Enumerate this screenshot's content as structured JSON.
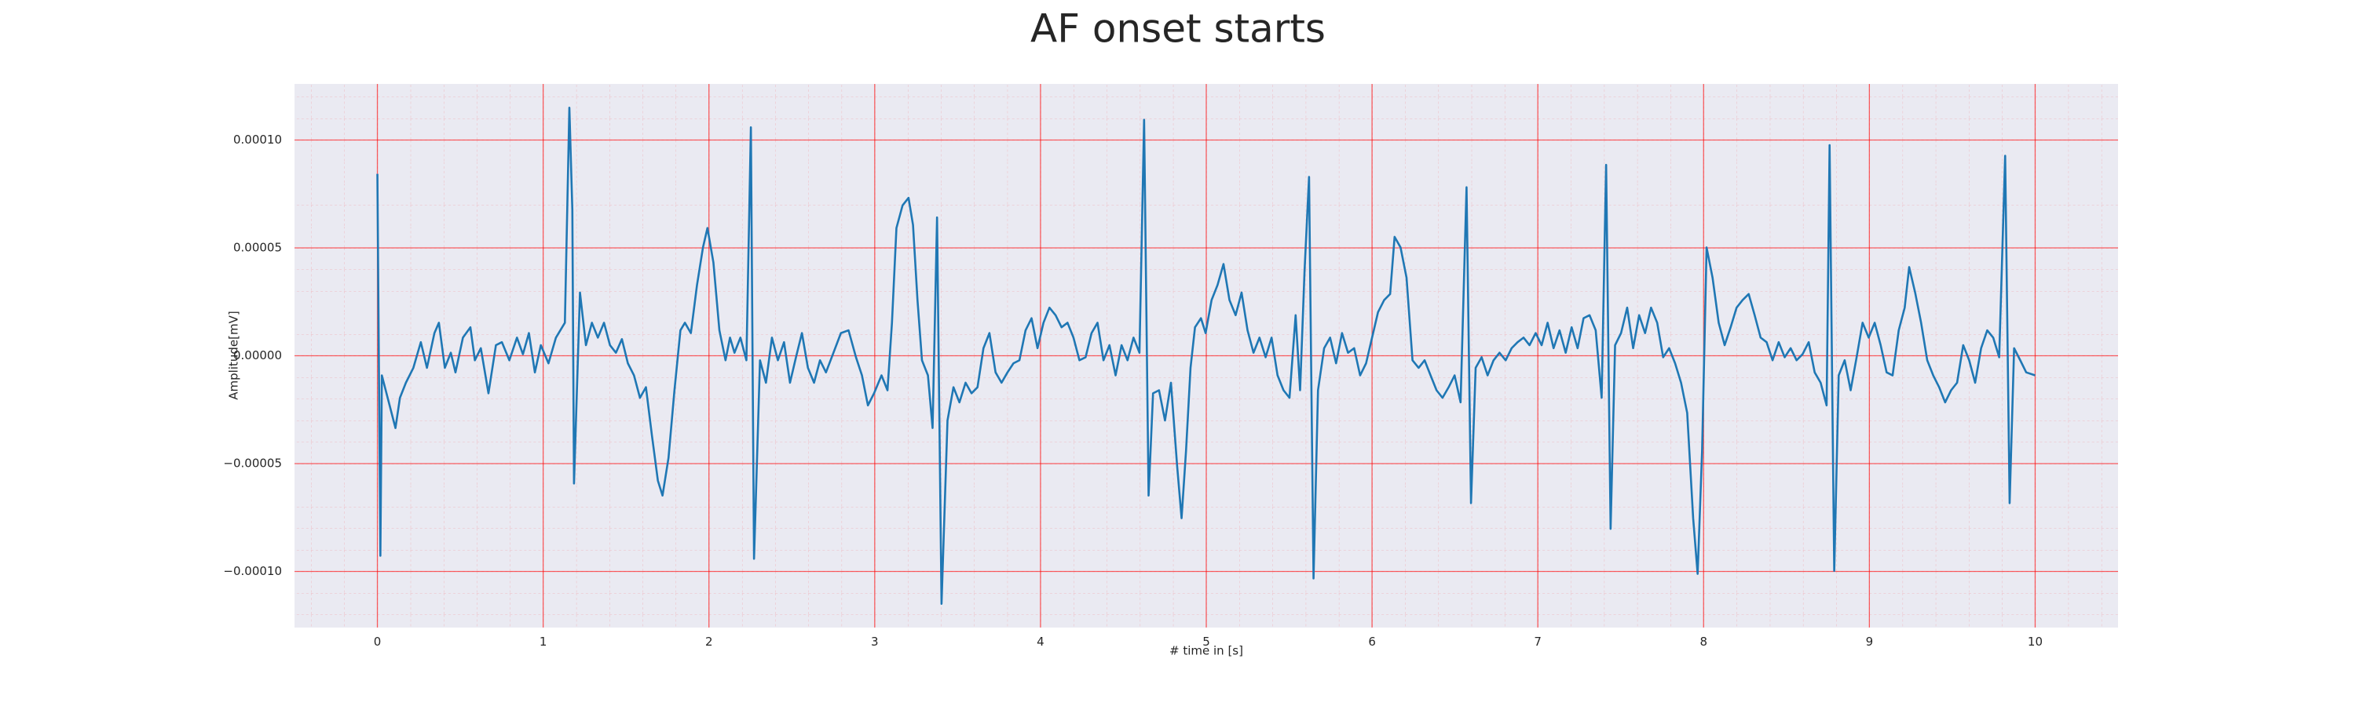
{
  "chart_data": {
    "type": "line",
    "title": "AF onset starts",
    "x_label": "# time in [s]",
    "y_label": "Amplitude[mV]",
    "xlim": [
      -0.5,
      10.5
    ],
    "ylim": [
      -0.000126,
      0.000126
    ],
    "xticks": [
      0,
      1,
      2,
      3,
      4,
      5,
      6,
      7,
      8,
      9,
      10
    ],
    "yticks": [
      {
        "value": -0.0001,
        "label": "−0.00010"
      },
      {
        "value": -5e-05,
        "label": "−0.00005"
      },
      {
        "value": 0,
        "label": "0.00000"
      },
      {
        "value": 5e-05,
        "label": "0.00005"
      },
      {
        "value": 0.0001,
        "label": "0.00010"
      }
    ],
    "grid": true,
    "grid_color": "#ff0000",
    "background": "#eaeaf2",
    "series": [
      {
        "color": "#1f77b4",
        "x": [
          0,
          0.018,
          0.027,
          0.109,
          0.136,
          0.172,
          0.217,
          0.262,
          0.299,
          0.344,
          0.371,
          0.407,
          0.443,
          0.471,
          0.516,
          0.561,
          0.588,
          0.624,
          0.67,
          0.715,
          0.751,
          0.796,
          0.842,
          0.878,
          0.914,
          0.95,
          0.986,
          1.032,
          1.077,
          1.131,
          1.158,
          1.176,
          1.186,
          1.222,
          1.258,
          1.294,
          1.33,
          1.367,
          1.403,
          1.439,
          1.475,
          1.511,
          1.548,
          1.584,
          1.62,
          1.656,
          1.692,
          1.72,
          1.756,
          1.792,
          1.828,
          1.855,
          1.891,
          1.928,
          1.964,
          1.991,
          2.027,
          2.063,
          2.1,
          2.127,
          2.154,
          2.19,
          2.226,
          2.253,
          2.272,
          2.308,
          2.344,
          2.38,
          2.416,
          2.453,
          2.489,
          2.525,
          2.561,
          2.597,
          2.634,
          2.67,
          2.706,
          2.751,
          2.796,
          2.842,
          2.887,
          2.923,
          2.959,
          2.996,
          3.041,
          3.077,
          3.104,
          3.131,
          3.168,
          3.204,
          3.231,
          3.258,
          3.285,
          3.321,
          3.349,
          3.376,
          3.403,
          3.439,
          3.475,
          3.511,
          3.548,
          3.584,
          3.62,
          3.656,
          3.692,
          3.729,
          3.765,
          3.801,
          3.837,
          3.873,
          3.91,
          3.946,
          3.982,
          4.018,
          4.054,
          4.091,
          4.127,
          4.163,
          4.199,
          4.235,
          4.272,
          4.308,
          4.344,
          4.38,
          4.416,
          4.453,
          4.489,
          4.525,
          4.561,
          4.597,
          4.625,
          4.652,
          4.679,
          4.715,
          4.751,
          4.787,
          4.824,
          4.851,
          4.878,
          4.905,
          4.932,
          4.968,
          4.996,
          5.032,
          5.068,
          5.104,
          5.14,
          5.177,
          5.213,
          5.249,
          5.285,
          5.321,
          5.358,
          5.394,
          5.43,
          5.466,
          5.502,
          5.539,
          5.566,
          5.593,
          5.62,
          5.647,
          5.674,
          5.711,
          5.747,
          5.783,
          5.819,
          5.855,
          5.892,
          5.928,
          5.964,
          6.0,
          6.036,
          6.073,
          6.109,
          6.136,
          6.172,
          6.208,
          6.244,
          6.281,
          6.317,
          6.353,
          6.389,
          6.425,
          6.462,
          6.498,
          6.534,
          6.57,
          6.597,
          6.625,
          6.661,
          6.697,
          6.733,
          6.769,
          6.806,
          6.842,
          6.878,
          6.914,
          6.95,
          6.987,
          7.023,
          7.059,
          7.095,
          7.131,
          7.168,
          7.204,
          7.24,
          7.276,
          7.312,
          7.349,
          7.385,
          7.412,
          7.439,
          7.466,
          7.502,
          7.539,
          7.575,
          7.611,
          7.647,
          7.683,
          7.72,
          7.756,
          7.792,
          7.828,
          7.864,
          7.901,
          7.937,
          7.964,
          7.991,
          8.018,
          8.054,
          8.091,
          8.127,
          8.163,
          8.199,
          8.235,
          8.272,
          8.308,
          8.344,
          8.38,
          8.416,
          8.453,
          8.489,
          8.525,
          8.561,
          8.597,
          8.634,
          8.67,
          8.706,
          8.742,
          8.76,
          8.788,
          8.815,
          8.851,
          8.887,
          8.923,
          8.959,
          8.996,
          9.032,
          9.068,
          9.104,
          9.14,
          9.177,
          9.213,
          9.24,
          9.276,
          9.312,
          9.349,
          9.385,
          9.421,
          9.457,
          9.493,
          9.529,
          9.566,
          9.602,
          9.638,
          9.674,
          9.711,
          9.747,
          9.783,
          9.819,
          9.846,
          9.873,
          9.91,
          9.946,
          10.0
        ],
        "values": [
          8.43e-05,
          -9.27e-05,
          -9.1e-06,
          -3.35e-05,
          -1.95e-05,
          -1.25e-05,
          -5.6e-06,
          6.3e-06,
          -5.6e-06,
          1.05e-05,
          1.53e-05,
          -5.6e-06,
          1.4e-06,
          -7.7e-06,
          8.4e-06,
          1.32e-05,
          -2.1e-06,
          3.5e-06,
          -1.74e-05,
          4.9e-06,
          6.3e-06,
          -2.1e-06,
          8.4e-06,
          7e-07,
          1.05e-05,
          -7.7e-06,
          4.9e-06,
          -3.5e-06,
          8.4e-06,
          1.53e-05,
          0.000115,
          6.76e-05,
          -5.92e-05,
          2.93e-05,
          4.9e-06,
          1.53e-05,
          8.4e-06,
          1.53e-05,
          4.9e-06,
          1.4e-06,
          7.7e-06,
          -3.5e-06,
          -9.1e-06,
          -1.95e-05,
          -1.46e-05,
          -3.69e-05,
          -5.79e-05,
          -6.48e-05,
          -4.74e-05,
          -1.6e-05,
          1.18e-05,
          1.53e-05,
          1.05e-05,
          3.28e-05,
          5.02e-05,
          5.92e-05,
          4.32e-05,
          1.18e-05,
          -2.1e-06,
          8.4e-06,
          1.4e-06,
          8.4e-06,
          -2.1e-06,
          0.0001059,
          -9.41e-05,
          -2.1e-06,
          -1.25e-05,
          8.4e-06,
          -2.1e-06,
          6.3e-06,
          -1.25e-05,
          -7e-07,
          1.05e-05,
          -5.6e-06,
          -1.25e-05,
          -2.1e-06,
          -7.7e-06,
          1.4e-06,
          1.05e-05,
          1.18e-05,
          -7e-07,
          -9.1e-06,
          -2.3e-05,
          -1.74e-05,
          -9.1e-06,
          -1.6e-05,
          1.53e-05,
          5.92e-05,
          6.97e-05,
          7.32e-05,
          6.06e-05,
          2.58e-05,
          -2.1e-06,
          -9.1e-06,
          -3.35e-05,
          6.41e-05,
          -0.000115,
          -3e-05,
          -1.46e-05,
          -2.16e-05,
          -1.25e-05,
          -1.74e-05,
          -1.46e-05,
          3.5e-06,
          1.05e-05,
          -7.7e-06,
          -1.25e-05,
          -7.7e-06,
          -3.5e-06,
          -2.1e-06,
          1.18e-05,
          1.74e-05,
          3.5e-06,
          1.53e-05,
          2.23e-05,
          1.88e-05,
          1.32e-05,
          1.53e-05,
          8.4e-06,
          -2.1e-06,
          -7e-07,
          1.05e-05,
          1.53e-05,
          -2.1e-06,
          4.9e-06,
          -9.1e-06,
          4.9e-06,
          -2.1e-06,
          8.4e-06,
          1.4e-06,
          0.0001094,
          -6.48e-05,
          -1.74e-05,
          -1.6e-05,
          -3e-05,
          -1.25e-05,
          -5.09e-05,
          -7.53e-05,
          -4.39e-05,
          -5.6e-06,
          1.32e-05,
          1.74e-05,
          1.05e-05,
          2.58e-05,
          3.28e-05,
          4.25e-05,
          2.58e-05,
          1.88e-05,
          2.93e-05,
          1.18e-05,
          1.4e-06,
          8.4e-06,
          -7e-07,
          8.4e-06,
          -9.1e-06,
          -1.6e-05,
          -1.95e-05,
          1.88e-05,
          -1.6e-05,
          3.97e-05,
          8.29e-05,
          -0.0001032,
          -1.6e-05,
          3.5e-06,
          8.4e-06,
          -3.5e-06,
          1.05e-05,
          1.4e-06,
          3.5e-06,
          -9.1e-06,
          -3.5e-06,
          8.4e-06,
          2.02e-05,
          2.58e-05,
          2.86e-05,
          5.51e-05,
          5.02e-05,
          3.62e-05,
          -2.1e-06,
          -5.6e-06,
          -2.1e-06,
          -9.1e-06,
          -1.6e-05,
          -1.95e-05,
          -1.46e-05,
          -9.1e-06,
          -2.16e-05,
          7.81e-05,
          -6.83e-05,
          -5.6e-06,
          -7e-07,
          -9.1e-06,
          -2.1e-06,
          1.4e-06,
          -2.1e-06,
          3.5e-06,
          6.3e-06,
          8.4e-06,
          4.9e-06,
          1.05e-05,
          4.9e-06,
          1.53e-05,
          3.5e-06,
          1.18e-05,
          1.4e-06,
          1.32e-05,
          3.5e-06,
          1.74e-05,
          1.88e-05,
          1.18e-05,
          -1.95e-05,
          8.85e-05,
          -8.02e-05,
          4.9e-06,
          1.05e-05,
          2.23e-05,
          3.5e-06,
          1.88e-05,
          1.05e-05,
          2.23e-05,
          1.53e-05,
          -7e-07,
          3.5e-06,
          -3.5e-06,
          -1.25e-05,
          -2.65e-05,
          -7.53e-05,
          -0.0001011,
          -4.39e-05,
          5.02e-05,
          3.62e-05,
          1.53e-05,
          4.9e-06,
          1.32e-05,
          2.23e-05,
          2.58e-05,
          2.86e-05,
          1.88e-05,
          8.4e-06,
          6.3e-06,
          -2.1e-06,
          6.3e-06,
          -7e-07,
          3.5e-06,
          -2.1e-06,
          7e-07,
          6.3e-06,
          -7.7e-06,
          -1.25e-05,
          -2.3e-05,
          9.76e-05,
          -9.97e-05,
          -9.1e-06,
          -2.1e-06,
          -1.6e-05,
          -7e-07,
          1.53e-05,
          8.4e-06,
          1.53e-05,
          4.9e-06,
          -7.7e-06,
          -9.1e-06,
          1.18e-05,
          2.23e-05,
          4.11e-05,
          2.93e-05,
          1.53e-05,
          -2.1e-06,
          -9.1e-06,
          -1.46e-05,
          -2.16e-05,
          -1.6e-05,
          -1.25e-05,
          4.9e-06,
          -2.1e-06,
          -1.25e-05,
          3.5e-06,
          1.18e-05,
          8.4e-06,
          -7e-07,
          9.27e-05,
          -6.83e-05,
          3.5e-06,
          -2.1e-06,
          -7.7e-06,
          -9.1e-06
        ]
      }
    ]
  }
}
